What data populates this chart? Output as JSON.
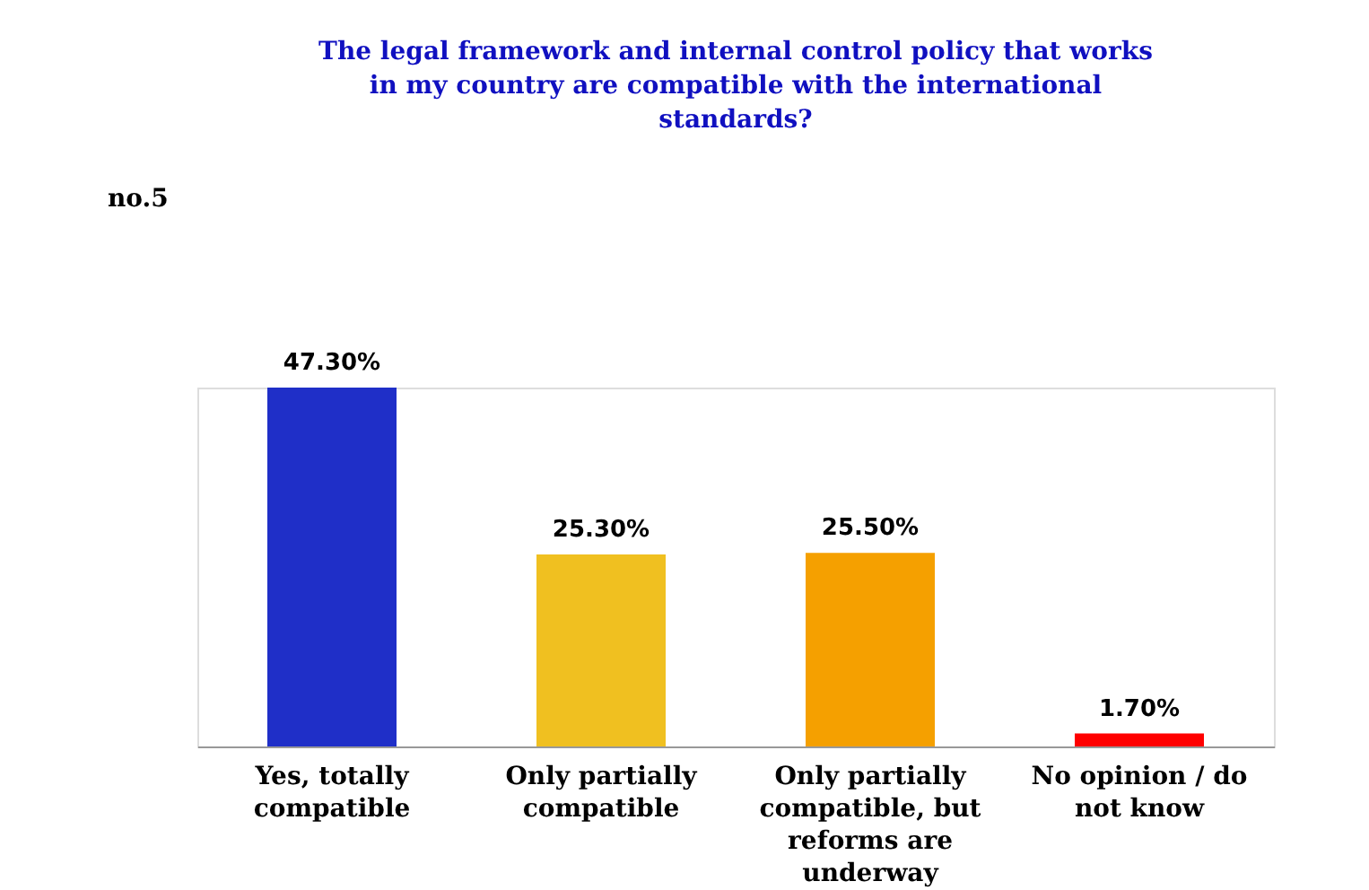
{
  "chart_data": {
    "type": "bar",
    "title": "The legal framework and internal control policy that works in my country are compatible with the international standards?",
    "categories": [
      "Yes, totally compatible",
      "Only partially compatible",
      "Only partially compatible, but reforms are underway",
      "No opinion / do not know"
    ],
    "values": [
      47.3,
      25.3,
      25.5,
      1.7
    ],
    "value_labels": [
      "47.30%",
      "25.30%",
      "25.50%",
      "1.70%"
    ],
    "colors": [
      "#1f2fc8",
      "#f0c020",
      "#f5a000",
      "#ff0000"
    ],
    "annotations": [
      "no.5"
    ]
  }
}
